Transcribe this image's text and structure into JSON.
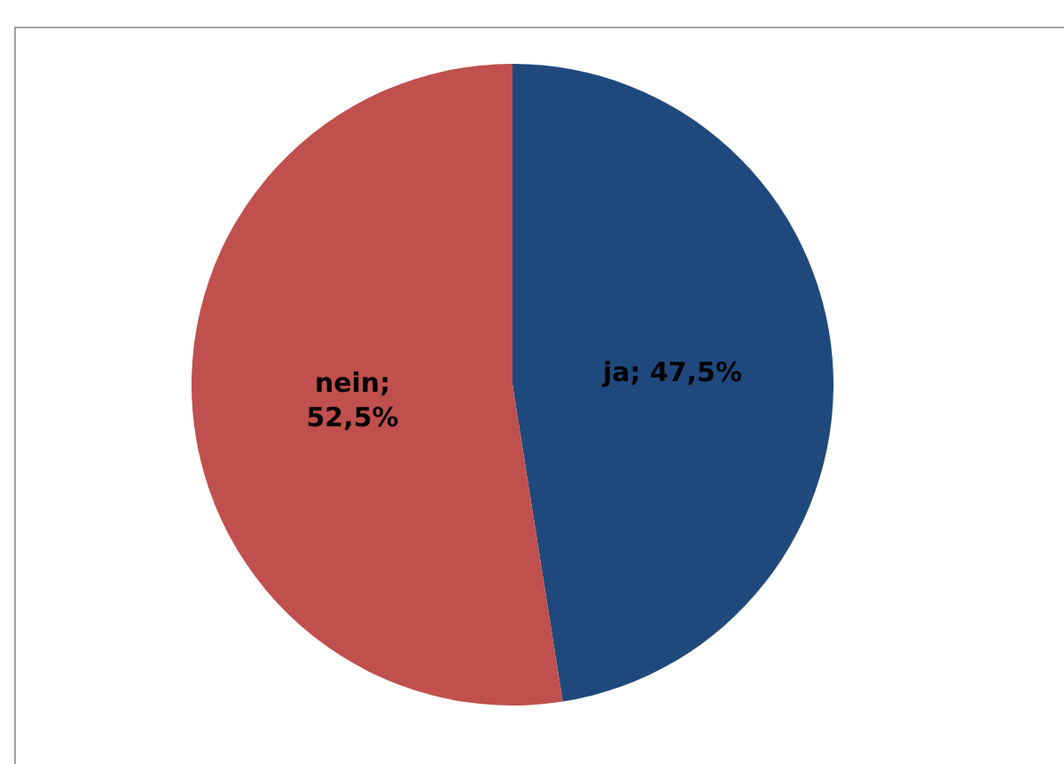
{
  "chart_data": {
    "type": "pie",
    "values": [
      47.5,
      52.5
    ],
    "colors": [
      "#1f497d",
      "#c0504d"
    ],
    "value_labels": [
      "ja; 47,5%",
      "nein; 52,5%"
    ]
  }
}
